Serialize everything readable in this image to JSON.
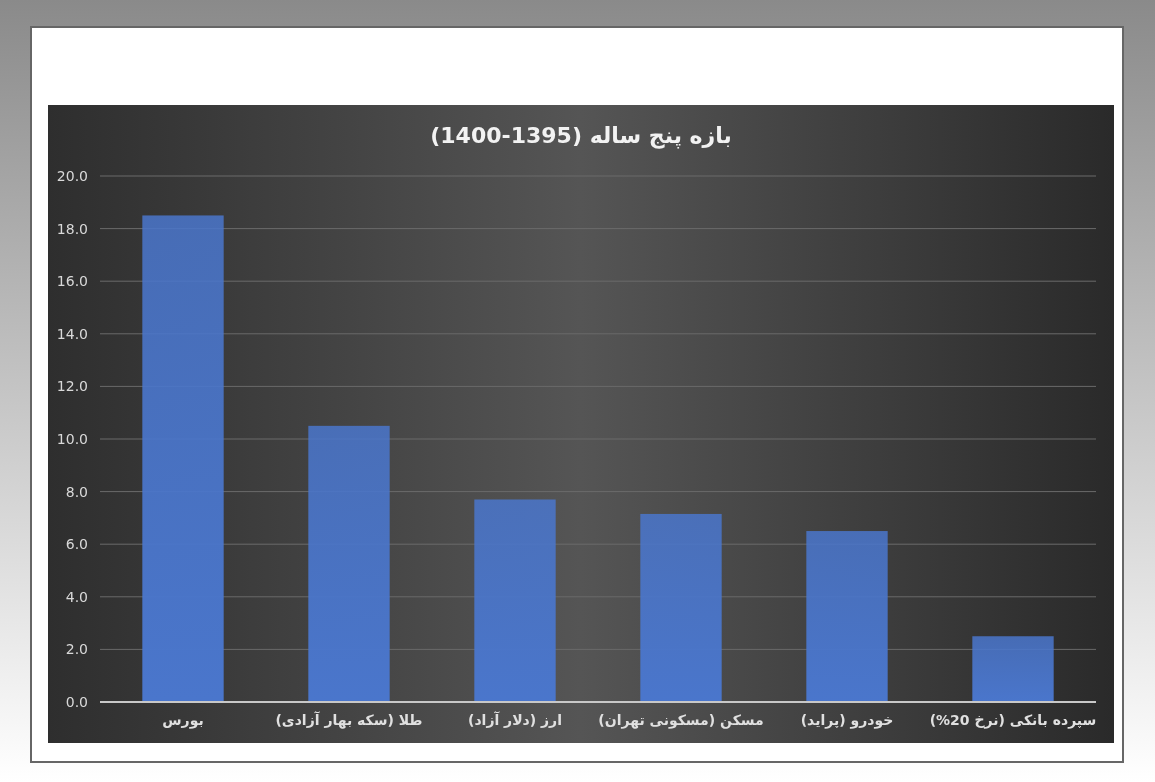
{
  "chart_data": {
    "type": "bar",
    "title": "بازه پنج ساله (1395-1400)",
    "categories": [
      "بورس",
      "طلا (سکه بهار آزادی)",
      "ارز (دلار آزاد)",
      "مسکن (مسکونی تهران)",
      "خودرو (پراید)",
      "سپرده بانکی (نرخ 20%)"
    ],
    "values": [
      18.5,
      10.5,
      7.7,
      7.15,
      6.5,
      2.5
    ],
    "color": "#4a76cc",
    "ylim": [
      0,
      20
    ],
    "yticks": [
      {
        "value": 0,
        "label": "0.0"
      },
      {
        "value": 2,
        "label": "2.0"
      },
      {
        "value": 4,
        "label": "4.0"
      },
      {
        "value": 6,
        "label": "6.0"
      },
      {
        "value": 8,
        "label": "8.0"
      },
      {
        "value": 10,
        "label": "10.0"
      },
      {
        "value": 12,
        "label": "12.0"
      },
      {
        "value": 14,
        "label": "14.0"
      },
      {
        "value": 16,
        "label": "16.0"
      },
      {
        "value": 18,
        "label": "18.0"
      },
      {
        "value": 20,
        "label": "20.0"
      }
    ],
    "grid": "y"
  }
}
